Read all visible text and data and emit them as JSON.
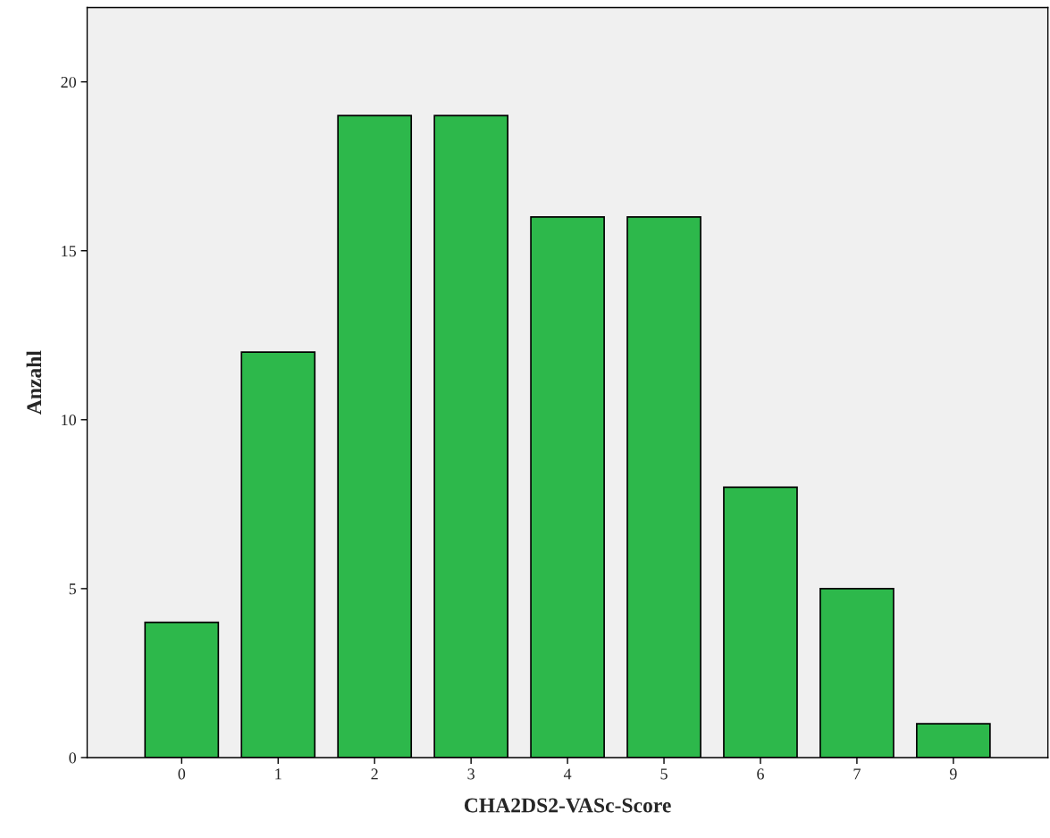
{
  "chart_data": {
    "type": "bar",
    "xlabel": "CHA2DS2-VASc-Score",
    "ylabel": "Anzahl",
    "categories": [
      "0",
      "1",
      "2",
      "3",
      "4",
      "5",
      "6",
      "7",
      "9"
    ],
    "values": [
      4,
      12,
      19,
      19,
      16,
      16,
      8,
      5,
      1
    ],
    "color": "#2db84b",
    "ylim": [
      0,
      22.2
    ],
    "yticks": [
      0,
      5,
      10,
      15,
      20
    ],
    "grid": false
  }
}
